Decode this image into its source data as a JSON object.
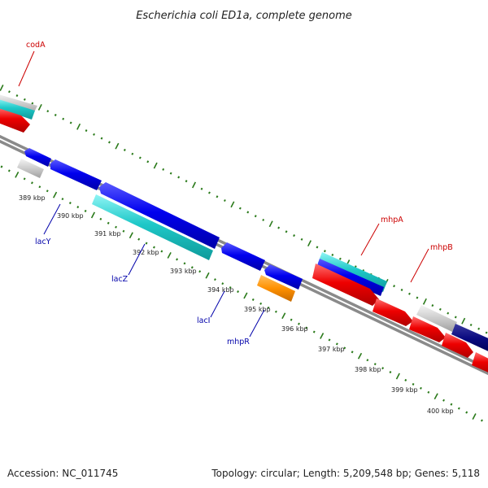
{
  "title": "Escherichia coli ED1a, complete genome",
  "footer": {
    "accession": "Accession: NC_011745",
    "summary": "Topology: circular; Length: 5,209,548 bp; Genes: 5,118"
  },
  "colors": {
    "backbone": "#7a7a7a",
    "tick": "#2a7a1a",
    "label_forward": "#cc0000",
    "label_reverse": "#0000aa"
  },
  "kbp_labels": [
    {
      "id": "k389",
      "text": "389 kbp"
    },
    {
      "id": "k390",
      "text": "390 kbp"
    },
    {
      "id": "k391",
      "text": "391 kbp"
    },
    {
      "id": "k392",
      "text": "392 kbp"
    },
    {
      "id": "k393",
      "text": "393 kbp"
    },
    {
      "id": "k394",
      "text": "394 kbp"
    },
    {
      "id": "k395",
      "text": "395 kbp"
    },
    {
      "id": "k396",
      "text": "396 kbp"
    },
    {
      "id": "k397",
      "text": "397 kbp"
    },
    {
      "id": "k398",
      "text": "398 kbp"
    },
    {
      "id": "k399",
      "text": "399 kbp"
    },
    {
      "id": "k400",
      "text": "400 kbp"
    }
  ],
  "gene_labels": [
    {
      "id": "codA",
      "text": "codA",
      "color": "#cc0000"
    },
    {
      "id": "lacY",
      "text": "lacY",
      "color": "#0000aa"
    },
    {
      "id": "lacZ",
      "text": "lacZ",
      "color": "#0000aa"
    },
    {
      "id": "lacI",
      "text": "lacI",
      "color": "#0000aa"
    },
    {
      "id": "mhpR",
      "text": "mhpR",
      "color": "#0000aa"
    },
    {
      "id": "mhpA",
      "text": "mhpA",
      "color": "#cc0000"
    },
    {
      "id": "mhpB",
      "text": "mhpB",
      "color": "#cc0000"
    }
  ]
}
